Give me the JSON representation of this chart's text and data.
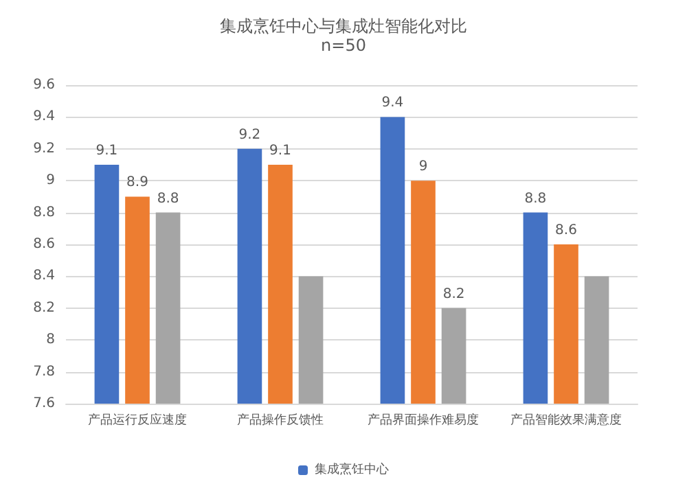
{
  "chart_data": {
    "type": "bar",
    "title": "集成烹饪中心与集成灶智能化对比",
    "subtitle": "n=50",
    "categories": [
      "产品运行反应速度",
      "产品操作反馈性",
      "产品界面操作难易度",
      "产品智能效果满意度"
    ],
    "series": [
      {
        "name": "集成烹饪中心",
        "color": "#4472c4",
        "values": [
          9.1,
          9.2,
          9.4,
          8.8
        ],
        "value_labels": [
          "9.1",
          "9.2",
          "9.4",
          "8.8"
        ]
      },
      {
        "color": "#ed7d31",
        "values": [
          8.9,
          9.1,
          9,
          8.6
        ],
        "value_labels": [
          "8.9",
          "9.1",
          "9",
          "8.6"
        ]
      },
      {
        "color": "#a5a5a5",
        "values": [
          8.8,
          8.4,
          8.2,
          8.4
        ],
        "value_labels": [
          "8.8",
          null,
          "8.2",
          null
        ]
      }
    ],
    "ylim": [
      7.6,
      9.6
    ],
    "yticks": [
      7.6,
      7.8,
      8,
      8.2,
      8.4,
      8.6,
      8.8,
      9,
      9.2,
      9.4,
      9.6
    ],
    "grid": "y",
    "legend": "bottom"
  }
}
